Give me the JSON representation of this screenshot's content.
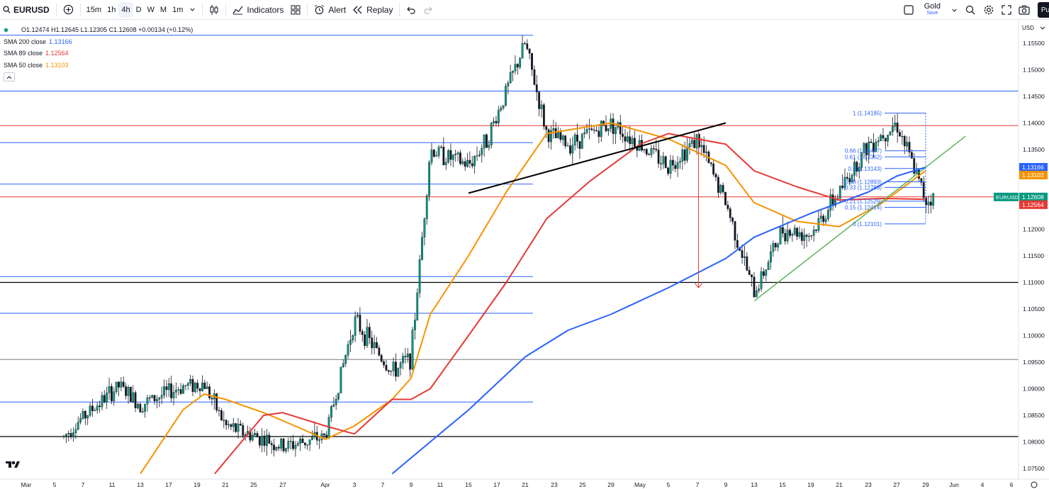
{
  "toolbar": {
    "symbol": "EURUSD",
    "intervals": [
      "15m",
      "1h",
      "4h",
      "D",
      "W",
      "M",
      "1m"
    ],
    "active_interval": "4h",
    "indicators_label": "Indicators",
    "alert_label": "Alert",
    "replay_label": "Replay",
    "layout_name": "Gold",
    "layout_sub": "Save",
    "publish_label": "Pu"
  },
  "legend": {
    "ohlc": "O1.12474 H1.12645 L1.12305 C1.12608 +0.00134 (+0.12%)",
    "indicators": [
      {
        "label": "SMA 200 close",
        "value": "1.13166",
        "color": "#2962ff"
      },
      {
        "label": "SMA 89 close",
        "value": "1.12564",
        "color": "#e53935"
      },
      {
        "label": "SMA 50 close",
        "value": "1.13103",
        "color": "#f59300"
      }
    ]
  },
  "price_scale": {
    "currency": "USD",
    "ticks": [
      "1.15500",
      "1.15000",
      "1.14500",
      "1.14000",
      "1.13500",
      "1.13000",
      "1.12500",
      "1.12000",
      "1.11500",
      "1.11000",
      "1.10500",
      "1.10000",
      "1.09500",
      "1.09000",
      "1.08500",
      "1.08000",
      "1.07500"
    ],
    "labels": [
      {
        "text": "1.13166",
        "value": 1.13166,
        "color": "#2962ff"
      },
      {
        "text": "1.13103",
        "value": 1.13103,
        "color": "#f59300"
      },
      {
        "text": "1.12608",
        "value": 1.12608,
        "color": "#089981",
        "tag": "EURUSD"
      },
      {
        "text": "1.12564",
        "value": 1.12564,
        "color": "#e53935"
      }
    ]
  },
  "time_scale": {
    "labels": [
      "Mar",
      "5",
      "7",
      "11",
      "13",
      "17",
      "19",
      "21",
      "25",
      "27",
      "Apr",
      "3",
      "7",
      "9",
      "11",
      "15",
      "17",
      "21",
      "23",
      "25",
      "29",
      "May",
      "5",
      "7",
      "9",
      "13",
      "15",
      "19",
      "21",
      "23",
      "27",
      "29",
      "Jun",
      "4",
      "6"
    ]
  },
  "fib_levels": [
    {
      "text": "1 (1.14185)",
      "value": 1.14185
    },
    {
      "text": "0.66 (1.13477)",
      "value": 1.13477
    },
    {
      "text": "0.61 (1.13362)",
      "value": 1.13362
    },
    {
      "text": "0.5 (1.13143)",
      "value": 1.13143
    },
    {
      "text": "0.38 (1.12893)",
      "value": 1.12893
    },
    {
      "text": "0.33 (1.12789)",
      "value": 1.12789
    },
    {
      "text": "0.21 (1.12529)",
      "value": 1.12529
    },
    {
      "text": "0.15 (1.12414)",
      "value": 1.12414
    },
    {
      "text": "0 (1.12101)",
      "value": 1.12101
    }
  ],
  "chart_data": {
    "type": "candlestick",
    "symbol": "EURUSD",
    "timeframe": "4h",
    "ylim": [
      1.0735,
      1.1585
    ],
    "close_prices": [
      {
        "date": "2025-03-05",
        "close": 1.079
      },
      {
        "date": "2025-03-07",
        "close": 1.0835
      },
      {
        "date": "2025-03-11",
        "close": 1.0905
      },
      {
        "date": "2025-03-13",
        "close": 1.087
      },
      {
        "date": "2025-03-17",
        "close": 1.0905
      },
      {
        "date": "2025-03-19",
        "close": 1.091
      },
      {
        "date": "2025-03-21",
        "close": 1.083
      },
      {
        "date": "2025-03-25",
        "close": 1.0805
      },
      {
        "date": "2025-03-27",
        "close": 1.079
      },
      {
        "date": "2025-04-01",
        "close": 1.081
      },
      {
        "date": "2025-04-03",
        "close": 1.103
      },
      {
        "date": "2025-04-07",
        "close": 1.093
      },
      {
        "date": "2025-04-09",
        "close": 1.096
      },
      {
        "date": "2025-04-11",
        "close": 1.135
      },
      {
        "date": "2025-04-15",
        "close": 1.132
      },
      {
        "date": "2025-04-17",
        "close": 1.137
      },
      {
        "date": "2025-04-21",
        "close": 1.155
      },
      {
        "date": "2025-04-23",
        "close": 1.138
      },
      {
        "date": "2025-04-25",
        "close": 1.136
      },
      {
        "date": "2025-04-29",
        "close": 1.14
      },
      {
        "date": "2025-05-05",
        "close": 1.132
      },
      {
        "date": "2025-05-07",
        "close": 1.137
      },
      {
        "date": "2025-05-09",
        "close": 1.125
      },
      {
        "date": "2025-05-13",
        "close": 1.108
      },
      {
        "date": "2025-05-15",
        "close": 1.12
      },
      {
        "date": "2025-05-19",
        "close": 1.119
      },
      {
        "date": "2025-05-21",
        "close": 1.127
      },
      {
        "date": "2025-05-23",
        "close": 1.136
      },
      {
        "date": "2025-05-27",
        "close": 1.14
      },
      {
        "date": "2025-05-29",
        "close": 1.1255
      },
      {
        "date": "2025-05-30",
        "close": 1.12608
      }
    ],
    "horizontal_levels": [
      {
        "value": 1.1565,
        "color": "#2962ff"
      },
      {
        "value": 1.146,
        "color": "#2962ff"
      },
      {
        "value": 1.1395,
        "color": "#e53935"
      },
      {
        "value": 1.1363,
        "color": "#2962ff"
      },
      {
        "value": 1.1285,
        "color": "#2962ff"
      },
      {
        "value": 1.1261,
        "color": "#e53935"
      },
      {
        "value": 1.1111,
        "color": "#2962ff"
      },
      {
        "value": 1.11,
        "color": "#000000"
      },
      {
        "value": 1.1042,
        "color": "#2962ff"
      },
      {
        "value": 1.0955,
        "color": "#787b86"
      },
      {
        "value": 1.0875,
        "color": "#2962ff"
      },
      {
        "value": 1.081,
        "color": "#000000"
      }
    ],
    "trendlines": [
      {
        "from": {
          "date": "2025-04-15",
          "value": 1.1268
        },
        "to": {
          "date": "2025-05-09",
          "value": 1.14
        },
        "color": "#000000"
      },
      {
        "from": {
          "date": "2025-05-13",
          "value": 1.1065
        },
        "to": {
          "date": "2025-06-02",
          "value": 1.1375
        },
        "color": "#4caf50"
      }
    ],
    "projection_arrow": {
      "from": {
        "date": "2025-05-07",
        "value": 1.1385
      },
      "to": {
        "date": "2025-05-07",
        "value": 1.109
      },
      "color": "#e53935"
    },
    "sma_200": [
      {
        "date": "2025-04-07",
        "value": 1.074
      },
      {
        "date": "2025-04-11",
        "value": 1.08
      },
      {
        "date": "2025-04-15",
        "value": 1.086
      },
      {
        "date": "2025-04-21",
        "value": 1.096
      },
      {
        "date": "2025-04-25",
        "value": 1.101
      },
      {
        "date": "2025-04-29",
        "value": 1.104
      },
      {
        "date": "2025-05-05",
        "value": 1.109
      },
      {
        "date": "2025-05-09",
        "value": 1.1145
      },
      {
        "date": "2025-05-13",
        "value": 1.1185
      },
      {
        "date": "2025-05-19",
        "value": 1.123
      },
      {
        "date": "2025-05-23",
        "value": 1.127
      },
      {
        "date": "2025-05-27",
        "value": 1.13
      },
      {
        "date": "2025-05-29",
        "value": 1.13166
      }
    ],
    "sma_89": [
      {
        "date": "2025-03-20",
        "value": 1.074
      },
      {
        "date": "2025-03-25",
        "value": 1.085
      },
      {
        "date": "2025-03-27",
        "value": 1.0855
      },
      {
        "date": "2025-04-01",
        "value": 1.083
      },
      {
        "date": "2025-04-03",
        "value": 1.0815
      },
      {
        "date": "2025-04-07",
        "value": 1.088
      },
      {
        "date": "2025-04-09",
        "value": 1.088
      },
      {
        "date": "2025-04-11",
        "value": 1.09
      },
      {
        "date": "2025-04-15",
        "value": 1.1
      },
      {
        "date": "2025-04-19",
        "value": 1.11
      },
      {
        "date": "2025-04-23",
        "value": 1.122
      },
      {
        "date": "2025-04-27",
        "value": 1.129
      },
      {
        "date": "2025-05-01",
        "value": 1.136
      },
      {
        "date": "2025-05-05",
        "value": 1.138
      },
      {
        "date": "2025-05-09",
        "value": 1.136
      },
      {
        "date": "2025-05-13",
        "value": 1.131
      },
      {
        "date": "2025-05-17",
        "value": 1.128
      },
      {
        "date": "2025-05-21",
        "value": 1.1255
      },
      {
        "date": "2025-05-25",
        "value": 1.1258
      },
      {
        "date": "2025-05-29",
        "value": 1.12564
      }
    ],
    "sma_50": [
      {
        "date": "2025-03-13",
        "value": 1.074
      },
      {
        "date": "2025-03-17",
        "value": 1.086
      },
      {
        "date": "2025-03-19",
        "value": 1.089
      },
      {
        "date": "2025-03-21",
        "value": 1.088
      },
      {
        "date": "2025-03-25",
        "value": 1.0855
      },
      {
        "date": "2025-03-27",
        "value": 1.084
      },
      {
        "date": "2025-04-01",
        "value": 1.0805
      },
      {
        "date": "2025-04-03",
        "value": 1.083
      },
      {
        "date": "2025-04-07",
        "value": 1.088
      },
      {
        "date": "2025-04-09",
        "value": 1.092
      },
      {
        "date": "2025-04-11",
        "value": 1.104
      },
      {
        "date": "2025-04-15",
        "value": 1.115
      },
      {
        "date": "2025-04-19",
        "value": 1.127
      },
      {
        "date": "2025-04-23",
        "value": 1.138
      },
      {
        "date": "2025-04-29",
        "value": 1.14
      },
      {
        "date": "2025-05-05",
        "value": 1.137
      },
      {
        "date": "2025-05-09",
        "value": 1.132
      },
      {
        "date": "2025-05-13",
        "value": 1.125
      },
      {
        "date": "2025-05-17",
        "value": 1.1215
      },
      {
        "date": "2025-05-21",
        "value": 1.1205
      },
      {
        "date": "2025-05-25",
        "value": 1.125
      },
      {
        "date": "2025-05-29",
        "value": 1.13103
      }
    ]
  }
}
